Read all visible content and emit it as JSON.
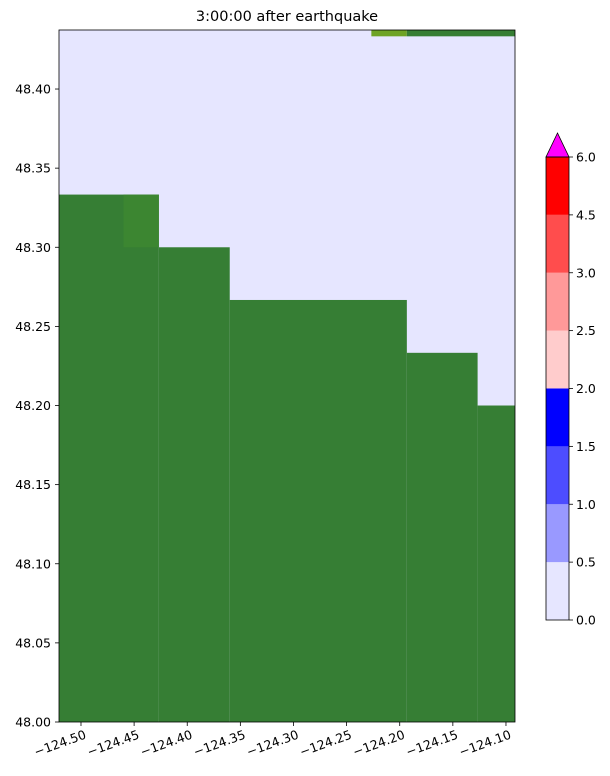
{
  "chart_data": {
    "type": "map",
    "title": "3:00:00 after earthquake",
    "water_color": "#e6e6ff",
    "xlim": [
      -124.5207,
      -124.0915
    ],
    "ylim": [
      48.0,
      48.4373
    ],
    "xticks": [
      {
        "value": -124.5,
        "label": "−124.50"
      },
      {
        "value": -124.45,
        "label": "−124.45"
      },
      {
        "value": -124.4,
        "label": "−124.40"
      },
      {
        "value": -124.35,
        "label": "−124.35"
      },
      {
        "value": -124.3,
        "label": "−124.30"
      },
      {
        "value": -124.25,
        "label": "−124.25"
      },
      {
        "value": -124.2,
        "label": "−124.20"
      },
      {
        "value": -124.15,
        "label": "−124.15"
      },
      {
        "value": -124.1,
        "label": "−124.10"
      }
    ],
    "yticks": [
      {
        "value": 48.0,
        "label": "48.00"
      },
      48.05,
      {
        "value": 48.1,
        "label": "48.10"
      },
      48.15,
      {
        "value": 48.2,
        "label": "48.20"
      },
      48.25,
      {
        "value": 48.3,
        "label": "48.30"
      },
      48.35,
      {
        "value": 48.4,
        "label": "48.40"
      }
    ],
    "cells": [
      {
        "x": [
          -124.5207,
          -124.4267
        ],
        "y": [
          48.0,
          48.3333
        ],
        "color": "#367e34"
      },
      {
        "x": [
          -124.46,
          -124.4267
        ],
        "y": [
          48.3,
          48.3333
        ],
        "color": "#3c8631"
      },
      {
        "x": [
          -124.4267,
          -124.36
        ],
        "y": [
          48.0,
          48.3
        ],
        "color": "#367e34"
      },
      {
        "x": [
          -124.36,
          -124.1933
        ],
        "y": [
          48.0,
          48.2667
        ],
        "color": "#367e34"
      },
      {
        "x": [
          -124.1933,
          -124.1267
        ],
        "y": [
          48.0,
          48.2333
        ],
        "color": "#367e34"
      },
      {
        "x": [
          -124.1267,
          -124.0915
        ],
        "y": [
          48.0,
          48.2
        ],
        "color": "#367e34"
      },
      {
        "x": [
          -124.2267,
          -124.1933
        ],
        "y": [
          48.4333,
          48.4373
        ],
        "color": "#6ea325"
      },
      {
        "x": [
          -124.1933,
          -124.0915
        ],
        "y": [
          48.4333,
          48.4373
        ],
        "color": "#367e34"
      }
    ],
    "colorbar": {
      "levels": [
        {
          "value": 0,
          "label": "0.0"
        },
        {
          "value": 0.5,
          "label": "0.5"
        },
        {
          "value": 1,
          "label": "1.0"
        },
        {
          "value": 1.5,
          "label": "1.5"
        },
        {
          "value": 2,
          "label": "2.0"
        },
        {
          "value": 2.5,
          "label": "2.5"
        },
        {
          "value": 3,
          "label": "3.0"
        },
        {
          "value": 4.5,
          "label": "4.5"
        },
        {
          "value": 6,
          "label": "6.0"
        }
      ],
      "colors": [
        "#e6e6ff",
        "#9999ff",
        "#4d4dff",
        "#0000ff",
        "#ffcccc",
        "#ff9999",
        "#ff4d4d",
        "#ff0000"
      ],
      "extend_color": "#ff00ff"
    }
  }
}
